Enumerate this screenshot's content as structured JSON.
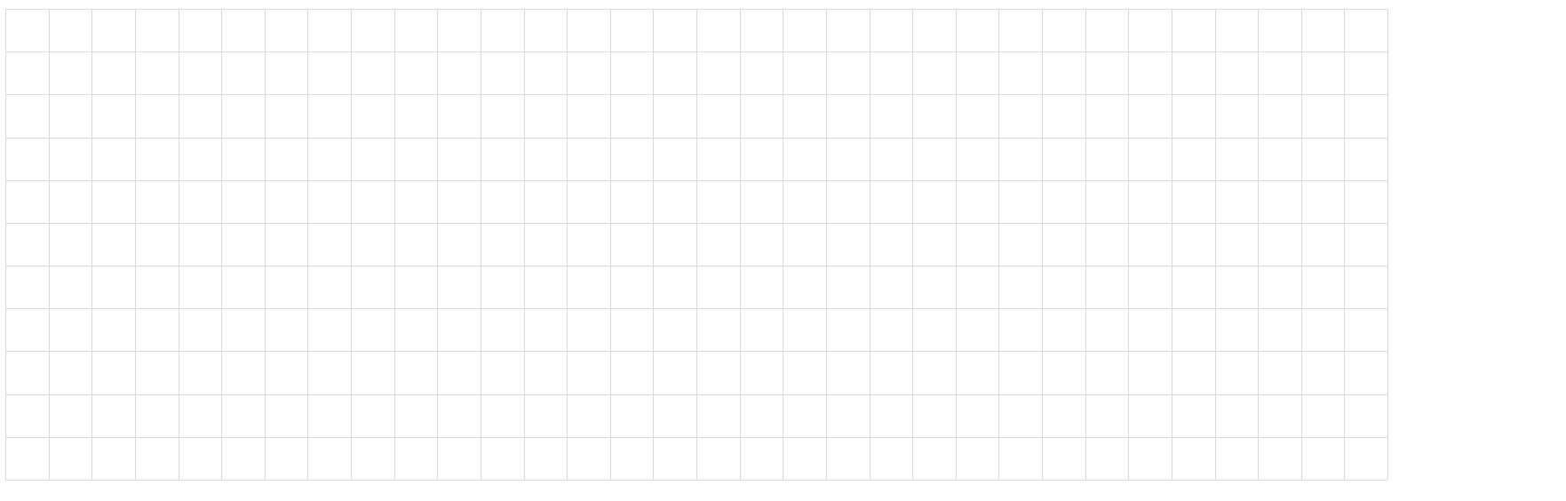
{
  "grid": {
    "columns": 32,
    "rows": 11,
    "line_color": "#d9d9d9",
    "background_color": "#ffffff"
  }
}
